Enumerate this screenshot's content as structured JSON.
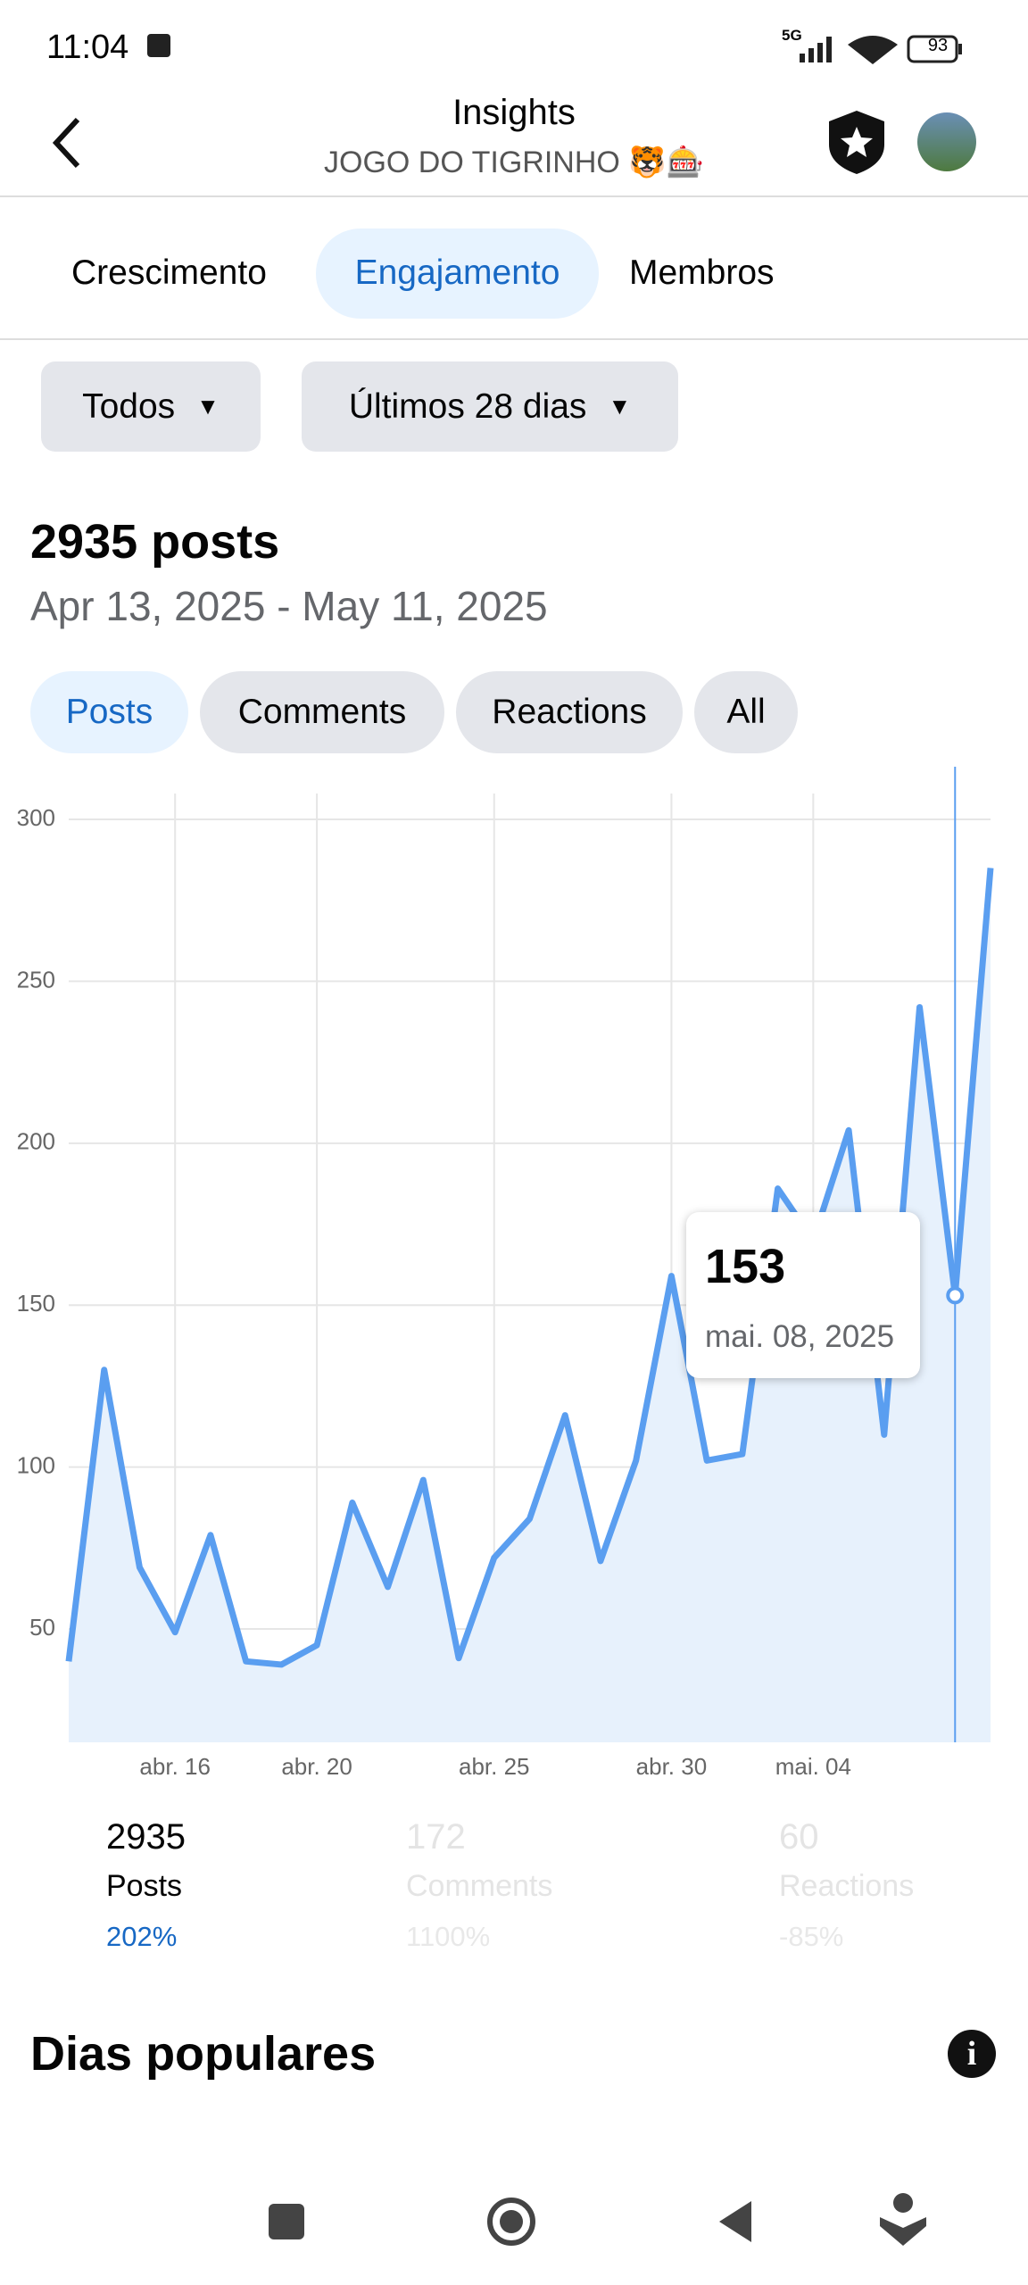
{
  "status_bar": {
    "time": "11:04",
    "network": "5G",
    "battery": "93"
  },
  "header": {
    "title": "Insights",
    "subtitle": "JOGO DO TIGRINHO 🐯🎰"
  },
  "tabs": [
    "Crescimento",
    "Engajamento",
    "Membros"
  ],
  "filters": [
    "Todos",
    "Últimos 28 dias"
  ],
  "summary": {
    "title": "2935 posts",
    "date_range": "Apr 13, 2025 - May 11, 2025"
  },
  "metric_tabs": [
    "Posts",
    "Comments",
    "Reactions",
    "All"
  ],
  "chart": {
    "type": "line",
    "categories": [
      null,
      null,
      null,
      "abr. 16",
      null,
      null,
      null,
      "abr. 20",
      null,
      null,
      null,
      null,
      "abr. 25",
      null,
      null,
      null,
      null,
      "abr. 30",
      null,
      null,
      null,
      "mai. 04",
      null,
      null,
      null,
      null,
      null
    ],
    "values": [
      40,
      130,
      69,
      49,
      79,
      40,
      39,
      45,
      89,
      63,
      96,
      41,
      72,
      84,
      116,
      71,
      102,
      159,
      102,
      104,
      186,
      170,
      204,
      110,
      242,
      153,
      285
    ],
    "color": "#5a9ef0",
    "ylim": [
      15,
      308
    ],
    "yticks": [
      50,
      100,
      150,
      200,
      250,
      300
    ],
    "grid": true,
    "tooltip": {
      "date": "mai. 08, 2025"
    }
  },
  "stats": [
    {
      "value": 2935,
      "label": "Posts",
      "change": "202%"
    },
    {
      "value": 172,
      "label": "Comments",
      "change": "1100%"
    },
    {
      "value": 60,
      "label": "Reactions",
      "change": "-85%"
    }
  ],
  "section": {
    "title": "Dias populares"
  }
}
